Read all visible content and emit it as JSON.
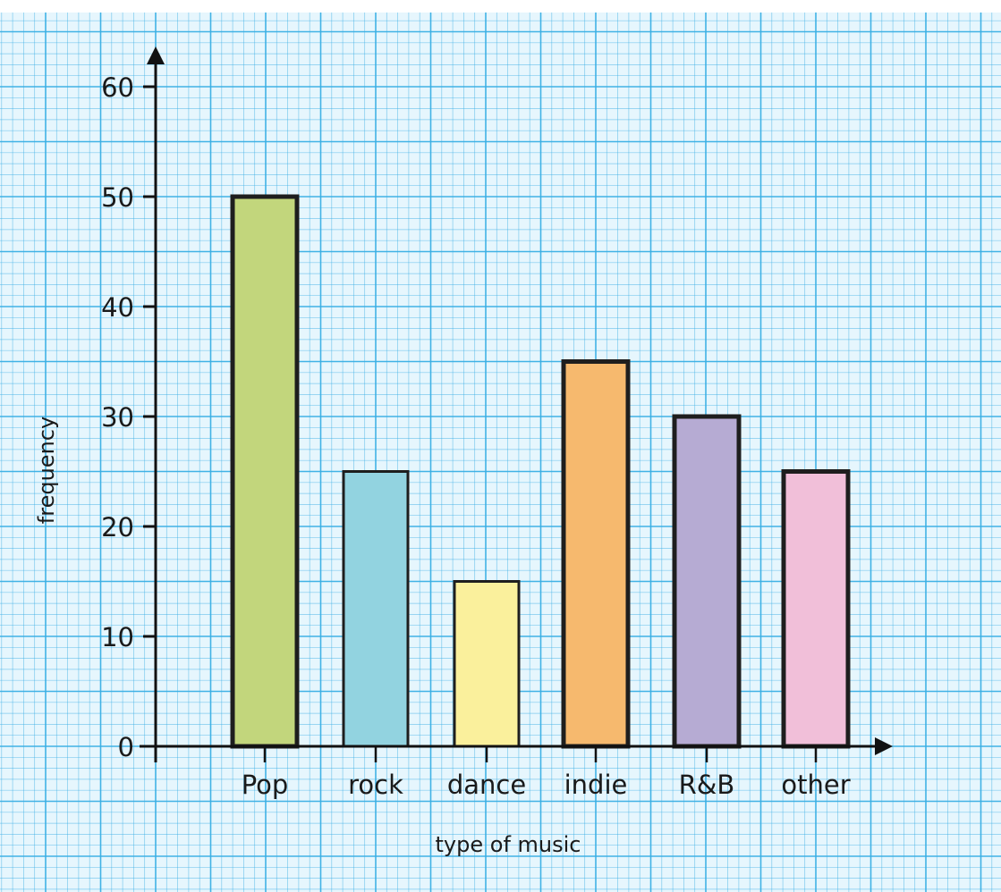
{
  "chart_data": {
    "type": "bar",
    "title": "",
    "xlabel": "type of music",
    "ylabel": "frequency",
    "categories": [
      "Pop",
      "rock",
      "dance",
      "indie",
      "R&B",
      "other"
    ],
    "values": [
      50,
      25,
      15,
      35,
      30,
      25
    ],
    "bar_colors": [
      "#c2d67c",
      "#92d3e0",
      "#faf09c",
      "#f6b96e",
      "#b6abd3",
      "#f1bfd9"
    ],
    "ylim": [
      0,
      60
    ],
    "yticks": [
      0,
      10,
      20,
      30,
      40,
      50,
      60
    ],
    "grid": true,
    "grid_color": "#38aee4",
    "background": "#e6f6fd",
    "axis_color": "#111111",
    "legend": "none"
  }
}
